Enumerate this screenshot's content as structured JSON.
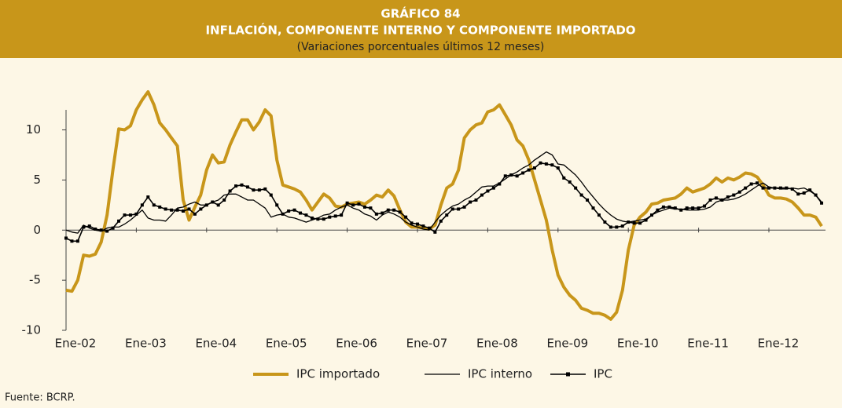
{
  "chart_data": {
    "type": "line",
    "title": "GRÁFICO 84",
    "subtitle": "INFLACIÓN, COMPONENTE INTERNO Y COMPONENTE IMPORTADO",
    "subtitle2": "(Variaciones porcentuales últimos 12 meses)",
    "source": "Fuente: BCRP.",
    "categories": [
      "Ene-02",
      null,
      null,
      null,
      null,
      null,
      null,
      null,
      null,
      null,
      null,
      null,
      "Ene-03",
      null,
      null,
      null,
      null,
      null,
      null,
      null,
      null,
      null,
      null,
      null,
      "Ene-04",
      null,
      null,
      null,
      null,
      null,
      null,
      null,
      null,
      null,
      null,
      null,
      "Ene-05",
      null,
      null,
      null,
      null,
      null,
      null,
      null,
      null,
      null,
      null,
      null,
      "Ene-06",
      null,
      null,
      null,
      null,
      null,
      null,
      null,
      null,
      null,
      null,
      null,
      "Ene-07",
      null,
      null,
      null,
      null,
      null,
      null,
      null,
      null,
      null,
      null,
      null,
      "Ene-08",
      null,
      null,
      null,
      null,
      null,
      null,
      null,
      null,
      null,
      null,
      null,
      "Ene-09",
      null,
      null,
      null,
      null,
      null,
      null,
      null,
      null,
      null,
      null,
      null,
      "Ene-10",
      null,
      null,
      null,
      null,
      null,
      null,
      null,
      null,
      null,
      null,
      null,
      "Ene-11",
      null,
      null,
      null,
      null,
      null,
      null,
      null,
      null,
      null,
      null,
      null,
      "Ene-12",
      null,
      null,
      null,
      null,
      null,
      null,
      null,
      null,
      null
    ],
    "ylim": [
      -10,
      12
    ],
    "yticks": [
      10,
      5,
      0,
      -5,
      -10
    ],
    "grid": false,
    "legend": "bottom",
    "series": [
      {
        "name": "IPC importado",
        "color": "#c8961a",
        "values": [
          -6,
          -6.1,
          -5,
          -2.5,
          -2.6,
          -2.4,
          -1.2,
          1.5,
          6,
          10.1,
          10,
          10.4,
          12,
          13,
          13.8,
          12.5,
          10.7,
          10,
          9.2,
          8.4,
          3,
          1,
          2.3,
          3.5,
          6,
          7.5,
          6.7,
          6.8,
          8.5,
          9.8,
          11,
          11,
          10,
          10.8,
          12,
          11.4,
          7,
          4.5,
          4.3,
          4.1,
          3.8,
          3,
          2,
          2.8,
          3.6,
          3.2,
          2.4,
          2.3,
          2.6,
          2.7,
          2.8,
          2.6,
          3,
          3.5,
          3.3,
          4,
          3.4,
          2,
          0.8,
          0.3,
          0.3,
          0.2,
          0.1,
          0.5,
          2.5,
          4.2,
          4.6,
          6,
          9.2,
          10,
          10.5,
          10.7,
          11.8,
          12,
          12.5,
          11.5,
          10.5,
          9,
          8.4,
          7,
          5,
          3,
          1,
          -2,
          -4.5,
          -5.7,
          -6.5,
          -7,
          -7.8,
          -8,
          -8.3,
          -8.3,
          -8.5,
          -8.9,
          -8.2,
          -6,
          -2,
          0.5,
          1.3,
          1.8,
          2.6,
          2.7,
          3,
          3.1,
          3.2,
          3.6,
          4.2,
          3.8,
          4,
          4.2,
          4.6,
          5.2,
          4.8,
          5.2,
          5,
          5.3,
          5.7,
          5.6,
          5.3,
          4.5,
          3.5,
          3.2,
          3.2,
          3.1,
          2.8,
          2.2,
          1.5,
          1.5,
          1.3,
          0.4
        ]
      },
      {
        "name": "IPC interno",
        "color": "#000000",
        "values": [
          0,
          -0.2,
          -0.3,
          0.5,
          0.2,
          0,
          -0.1,
          0.2,
          0.3,
          0.3,
          0.6,
          1,
          1.5,
          2,
          1.2,
          1,
          1,
          0.9,
          1.5,
          2.2,
          2.3,
          2.6,
          2.8,
          2.5,
          2.5,
          2.8,
          3,
          3.5,
          3.6,
          3.6,
          3.3,
          3,
          3,
          2.6,
          2.2,
          1.3,
          1.5,
          1.6,
          1.3,
          1.2,
          1,
          0.8,
          1,
          1.2,
          1.5,
          1.6,
          2,
          2.3,
          2.5,
          2.2,
          2,
          1.6,
          1.4,
          1,
          1.5,
          1.8,
          1.6,
          1.3,
          0.8,
          0.5,
          0.3,
          0.1,
          0,
          0.8,
          1.5,
          2,
          2.4,
          2.6,
          3,
          3.3,
          3.8,
          4.3,
          4.4,
          4.4,
          4.7,
          5.1,
          5.5,
          5.8,
          6.2,
          6.5,
          7,
          7.4,
          7.8,
          7.5,
          6.6,
          6.5,
          6,
          5.5,
          4.8,
          4,
          3.3,
          2.6,
          2,
          1.5,
          1.1,
          0.9,
          0.8,
          0.9,
          1,
          1.1,
          1.5,
          1.8,
          2,
          2.2,
          2.1,
          2.1,
          2,
          2,
          2,
          2.1,
          2.3,
          2.8,
          3,
          3,
          3.1,
          3.3,
          3.6,
          4,
          4.4,
          4.7,
          4.3,
          4.2,
          4.1,
          4.1,
          4.2,
          4.1,
          4.2,
          3.9,
          3.5,
          2.8
        ]
      },
      {
        "name": "IPC",
        "color": "#000000",
        "values": [
          -0.8,
          -1.1,
          -1.1,
          0.3,
          0.4,
          0.1,
          0,
          -0.1,
          0.2,
          0.9,
          1.5,
          1.5,
          1.6,
          2.5,
          3.3,
          2.5,
          2.3,
          2.1,
          2,
          2,
          1.9,
          2.1,
          1.6,
          2.1,
          2.5,
          2.8,
          2.5,
          3,
          3.9,
          4.4,
          4.5,
          4.3,
          4,
          4,
          4.1,
          3.5,
          2.5,
          1.6,
          1.9,
          2,
          1.7,
          1.5,
          1.2,
          1.1,
          1.1,
          1.3,
          1.4,
          1.5,
          2.7,
          2.5,
          2.6,
          2.3,
          2.2,
          1.6,
          1.7,
          2,
          2,
          1.8,
          1.3,
          0.7,
          0.6,
          0.4,
          0.2,
          -0.2,
          0.9,
          1.5,
          2.1,
          2.1,
          2.3,
          2.8,
          3,
          3.5,
          3.9,
          4.2,
          4.6,
          5.4,
          5.5,
          5.4,
          5.7,
          6,
          6.2,
          6.7,
          6.6,
          6.5,
          6.2,
          5.2,
          4.8,
          4.2,
          3.5,
          3,
          2.2,
          1.5,
          0.8,
          0.3,
          0.3,
          0.4,
          0.8,
          0.7,
          0.7,
          1,
          1.5,
          2,
          2.3,
          2.3,
          2.2,
          2,
          2.2,
          2.2,
          2.2,
          2.4,
          3,
          3.2,
          3,
          3.3,
          3.5,
          3.8,
          4.2,
          4.6,
          4.7,
          4.2,
          4.2,
          4.2,
          4.2,
          4.2,
          4.1,
          3.6,
          3.7,
          4,
          3.5,
          2.7
        ]
      }
    ]
  }
}
